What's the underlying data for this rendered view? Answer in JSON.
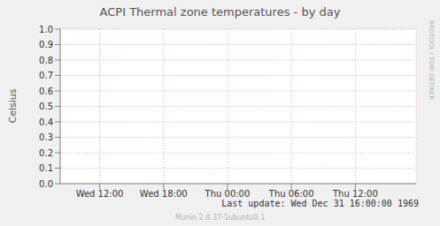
{
  "chart_data": {
    "type": "line",
    "title": "ACPI Thermal zone temperatures - by day",
    "y_label": "Celsius",
    "xlim": [
      8.3,
      41.7
    ],
    "xticks": [
      {
        "value": 12,
        "label": "Wed 12:00"
      },
      {
        "value": 18,
        "label": "Wed 18:00"
      },
      {
        "value": 24,
        "label": "Thu 00:00"
      },
      {
        "value": 30,
        "label": "Thu 06:00"
      },
      {
        "value": 36,
        "label": "Thu 12:00"
      }
    ],
    "ylim": [
      0,
      1
    ],
    "yticks": [
      {
        "value": 0,
        "label": "0.0"
      },
      0.1,
      0.2,
      0.3,
      0.4,
      0.5,
      0.6,
      0.7,
      0.8,
      0.9,
      {
        "value": 1,
        "label": "1.0"
      }
    ],
    "grid": true,
    "series": [],
    "annotations": [
      "Last update: Wed Dec 31 16:00:00 1969",
      "RRDTOOL / TOBI OETIKER",
      "Munin 2.0.37-1ubuntu0.1"
    ]
  }
}
